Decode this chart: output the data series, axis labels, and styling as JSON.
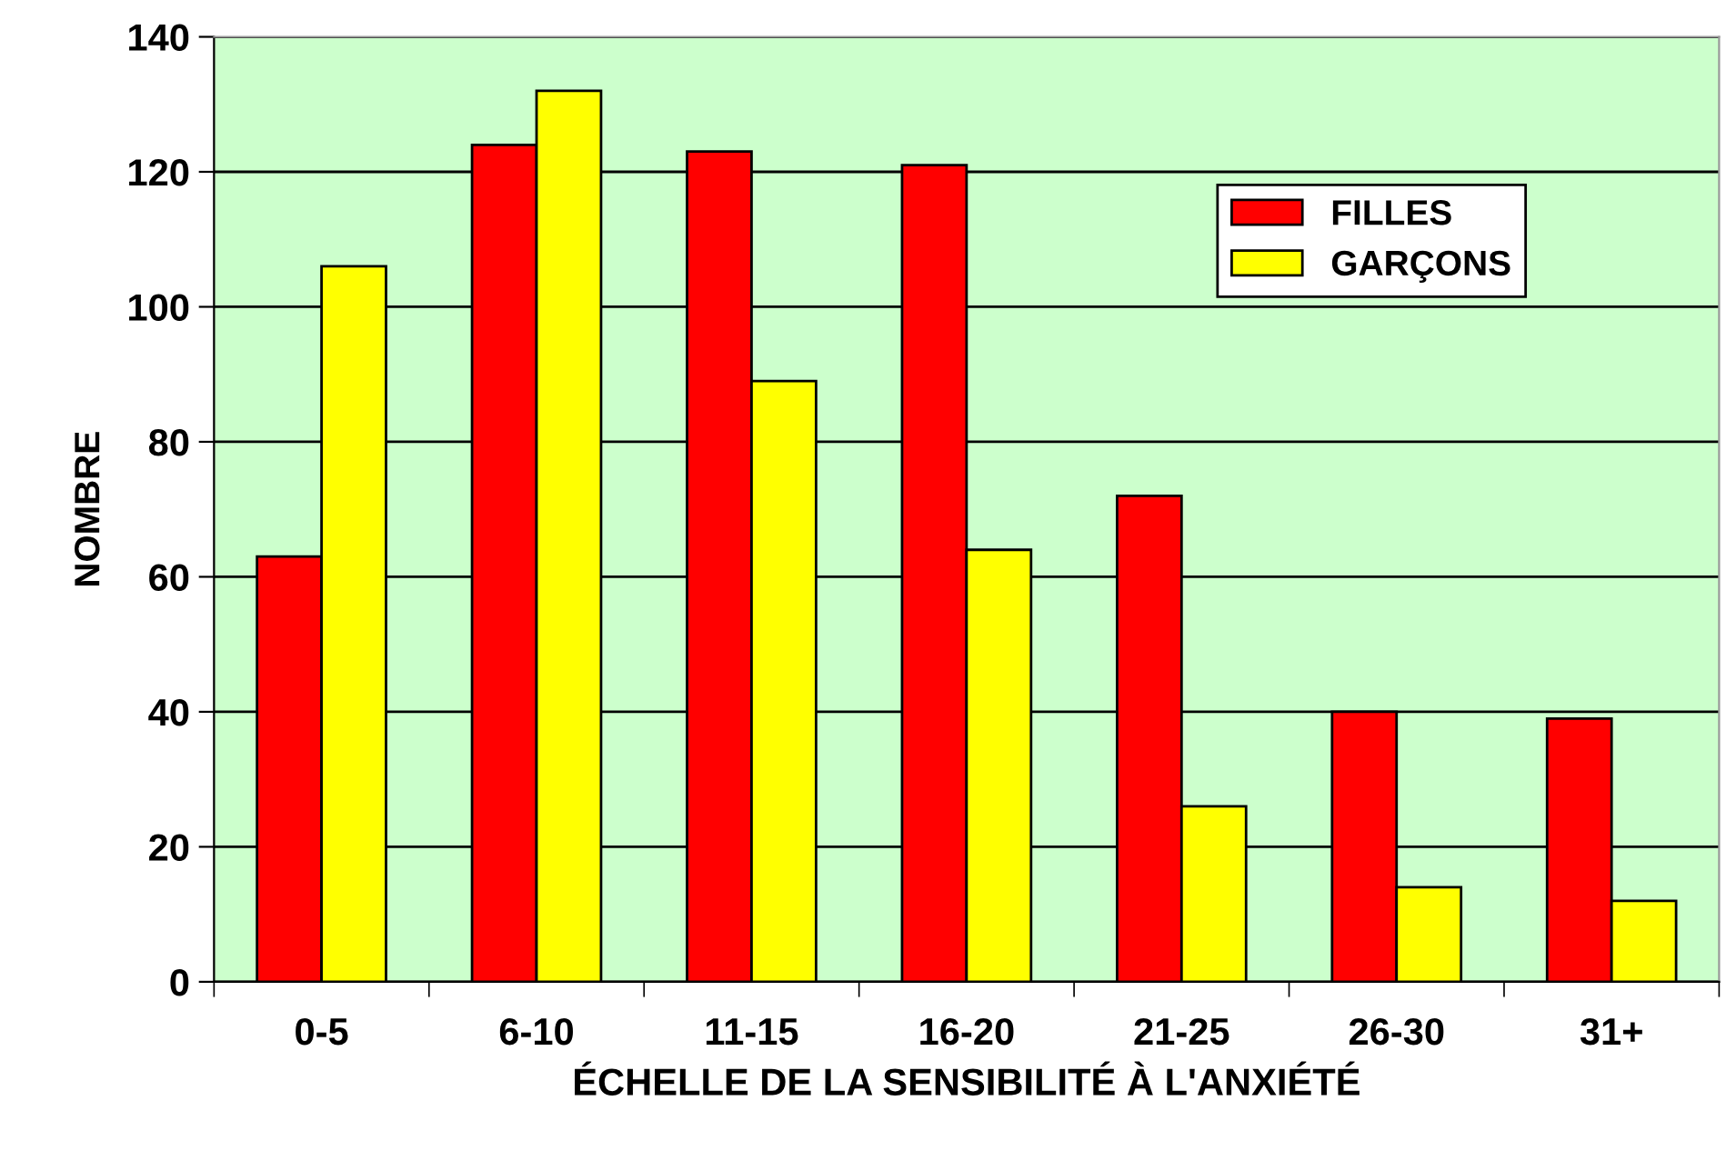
{
  "chart_data": {
    "type": "bar",
    "xlabel": "ÉCHELLE DE LA SENSIBILITÉ À L'ANXIÉTÉ",
    "ylabel": "NOMBRE",
    "categories": [
      "0-5",
      "6-10",
      "11-15",
      "16-20",
      "21-25",
      "26-30",
      "31+"
    ],
    "series": [
      {
        "name": "FILLES",
        "color": "#ff0000",
        "values": [
          63,
          124,
          123,
          121,
          72,
          40,
          39
        ]
      },
      {
        "name": "GARÇONS",
        "color": "#ffff00",
        "values": [
          106,
          132,
          89,
          64,
          26,
          14,
          12
        ]
      }
    ],
    "ylim": [
      0,
      140
    ],
    "yticks": [
      0,
      20,
      40,
      60,
      80,
      100,
      120,
      140
    ],
    "grid": "y",
    "legend": "top right"
  }
}
